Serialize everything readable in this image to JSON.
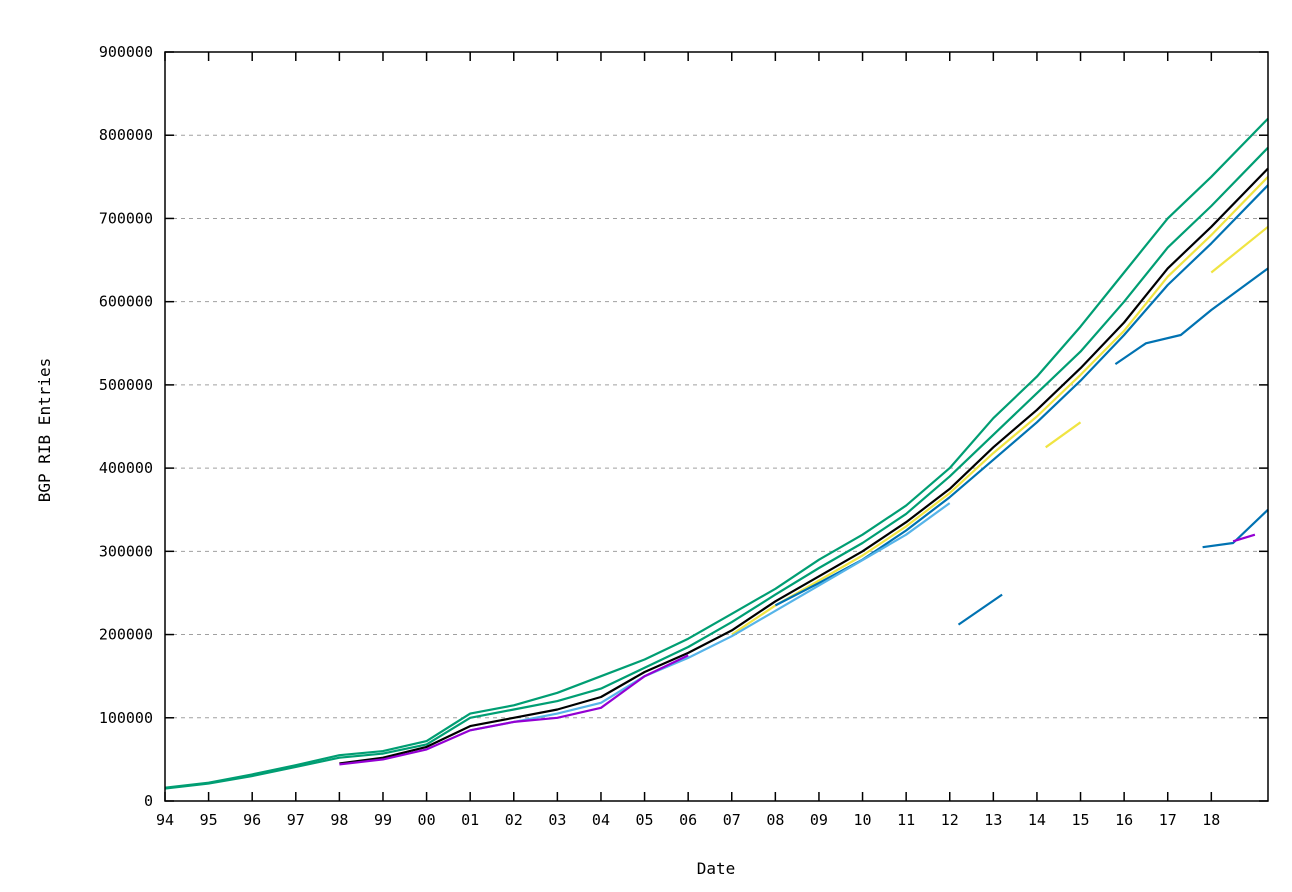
{
  "chart_data": {
    "type": "scatter",
    "title": "",
    "xlabel": "Date",
    "ylabel": "BGP RIB Entries",
    "x_tick_labels": [
      "94",
      "95",
      "96",
      "97",
      "98",
      "99",
      "00",
      "01",
      "02",
      "03",
      "04",
      "05",
      "06",
      "07",
      "08",
      "09",
      "10",
      "11",
      "12",
      "13",
      "14",
      "15",
      "16",
      "17",
      "18"
    ],
    "x_tick_years": [
      1994,
      1995,
      1996,
      1997,
      1998,
      1999,
      2000,
      2001,
      2002,
      2003,
      2004,
      2005,
      2006,
      2007,
      2008,
      2009,
      2010,
      2011,
      2012,
      2013,
      2014,
      2015,
      2016,
      2017,
      2018
    ],
    "xlim": [
      1994,
      2019.3
    ],
    "ylim": [
      0,
      900000
    ],
    "y_ticks": [
      0,
      100000,
      200000,
      300000,
      400000,
      500000,
      600000,
      700000,
      800000,
      900000
    ],
    "y_tick_labels": [
      "0",
      "100000",
      "200000",
      "300000",
      "400000",
      "500000",
      "600000",
      "700000",
      "800000",
      "900000"
    ],
    "grid": true,
    "series": [
      {
        "color": "#009e73",
        "points": [
          [
            1994,
            16000
          ],
          [
            1995,
            22000
          ],
          [
            1996,
            32000
          ],
          [
            1997,
            43000
          ],
          [
            1998,
            55000
          ],
          [
            1999,
            60000
          ],
          [
            2000,
            72000
          ],
          [
            2001,
            105000
          ],
          [
            2002,
            115000
          ],
          [
            2003,
            130000
          ],
          [
            2004,
            150000
          ],
          [
            2005,
            170000
          ],
          [
            2006,
            195000
          ],
          [
            2007,
            225000
          ],
          [
            2008,
            255000
          ],
          [
            2009,
            290000
          ],
          [
            2010,
            320000
          ],
          [
            2011,
            355000
          ],
          [
            2012,
            400000
          ],
          [
            2013,
            460000
          ],
          [
            2014,
            510000
          ],
          [
            2015,
            570000
          ],
          [
            2016,
            635000
          ],
          [
            2017,
            700000
          ],
          [
            2018,
            750000
          ],
          [
            2019.3,
            820000
          ]
        ]
      },
      {
        "color": "#009e73",
        "points": [
          [
            1994,
            15000
          ],
          [
            1995,
            21000
          ],
          [
            1996,
            30000
          ],
          [
            1997,
            41000
          ],
          [
            1998,
            52000
          ],
          [
            1999,
            57000
          ],
          [
            2000,
            68000
          ],
          [
            2001,
            100000
          ],
          [
            2002,
            110000
          ],
          [
            2003,
            120000
          ],
          [
            2004,
            135000
          ],
          [
            2005,
            160000
          ],
          [
            2006,
            185000
          ],
          [
            2007,
            215000
          ],
          [
            2008,
            248000
          ],
          [
            2009,
            280000
          ],
          [
            2010,
            310000
          ],
          [
            2011,
            345000
          ],
          [
            2012,
            390000
          ],
          [
            2013,
            440000
          ],
          [
            2014,
            490000
          ],
          [
            2015,
            540000
          ],
          [
            2016,
            600000
          ],
          [
            2017,
            665000
          ],
          [
            2018,
            715000
          ],
          [
            2019.3,
            785000
          ]
        ]
      },
      {
        "color": "#000000",
        "points": [
          [
            1998,
            45000
          ],
          [
            1999,
            52000
          ],
          [
            2000,
            65000
          ],
          [
            2001,
            90000
          ],
          [
            2002,
            100000
          ],
          [
            2003,
            110000
          ],
          [
            2004,
            125000
          ],
          [
            2005,
            155000
          ],
          [
            2006,
            178000
          ],
          [
            2007,
            205000
          ],
          [
            2008,
            240000
          ],
          [
            2009,
            270000
          ],
          [
            2010,
            300000
          ],
          [
            2011,
            335000
          ],
          [
            2012,
            375000
          ],
          [
            2013,
            425000
          ],
          [
            2014,
            470000
          ],
          [
            2015,
            520000
          ],
          [
            2016,
            575000
          ],
          [
            2017,
            640000
          ],
          [
            2018,
            690000
          ],
          [
            2019.3,
            760000
          ]
        ]
      },
      {
        "color": "#f0e442",
        "points": [
          [
            2007,
            200000
          ],
          [
            2008,
            235000
          ],
          [
            2009,
            265000
          ],
          [
            2010,
            295000
          ],
          [
            2011,
            330000
          ],
          [
            2012,
            370000
          ],
          [
            2013,
            418000
          ],
          [
            2014,
            462000
          ],
          [
            2015,
            512000
          ],
          [
            2016,
            565000
          ],
          [
            2017,
            630000
          ],
          [
            2018,
            680000
          ],
          [
            2019.3,
            750000
          ]
        ]
      },
      {
        "color": "#0072b2",
        "points": [
          [
            2008,
            235000
          ],
          [
            2009,
            262000
          ],
          [
            2010,
            290000
          ],
          [
            2011,
            325000
          ],
          [
            2012,
            365000
          ],
          [
            2013,
            410000
          ],
          [
            2014,
            455000
          ],
          [
            2015,
            505000
          ],
          [
            2016,
            560000
          ],
          [
            2017,
            620000
          ],
          [
            2018,
            670000
          ],
          [
            2019.3,
            740000
          ]
        ]
      },
      {
        "color": "#56b4e9",
        "points": [
          [
            2001,
            85000
          ],
          [
            2002,
            95000
          ],
          [
            2003,
            105000
          ],
          [
            2004,
            118000
          ],
          [
            2005,
            150000
          ],
          [
            2006,
            172000
          ],
          [
            2007,
            198000
          ],
          [
            2011,
            320000
          ],
          [
            2012,
            358000
          ]
        ]
      },
      {
        "color": "#9400d3",
        "points": [
          [
            1998,
            44000
          ],
          [
            1999,
            50000
          ],
          [
            2000,
            62000
          ],
          [
            2001,
            85000
          ],
          [
            2002,
            95000
          ],
          [
            2003,
            100000
          ],
          [
            2004,
            112000
          ],
          [
            2005,
            150000
          ],
          [
            2006,
            175000
          ]
        ]
      },
      {
        "color": "#0072b2",
        "points": [
          [
            2012.2,
            212000
          ],
          [
            2013.2,
            248000
          ]
        ]
      },
      {
        "color": "#0072b2",
        "points": [
          [
            2015.8,
            525000
          ],
          [
            2016.5,
            550000
          ],
          [
            2017.3,
            560000
          ],
          [
            2018,
            590000
          ],
          [
            2019.3,
            640000
          ]
        ]
      },
      {
        "color": "#f0e442",
        "points": [
          [
            2018,
            635000
          ],
          [
            2019.3,
            690000
          ]
        ]
      },
      {
        "color": "#0072b2",
        "points": [
          [
            2017.8,
            305000
          ],
          [
            2018.5,
            310000
          ],
          [
            2019.3,
            350000
          ]
        ]
      },
      {
        "color": "#9400d3",
        "points": [
          [
            2018.5,
            312000
          ],
          [
            2019,
            320000
          ]
        ]
      },
      {
        "color": "#f0e442",
        "points": [
          [
            2014.2,
            425000
          ],
          [
            2015,
            455000
          ]
        ]
      }
    ]
  }
}
